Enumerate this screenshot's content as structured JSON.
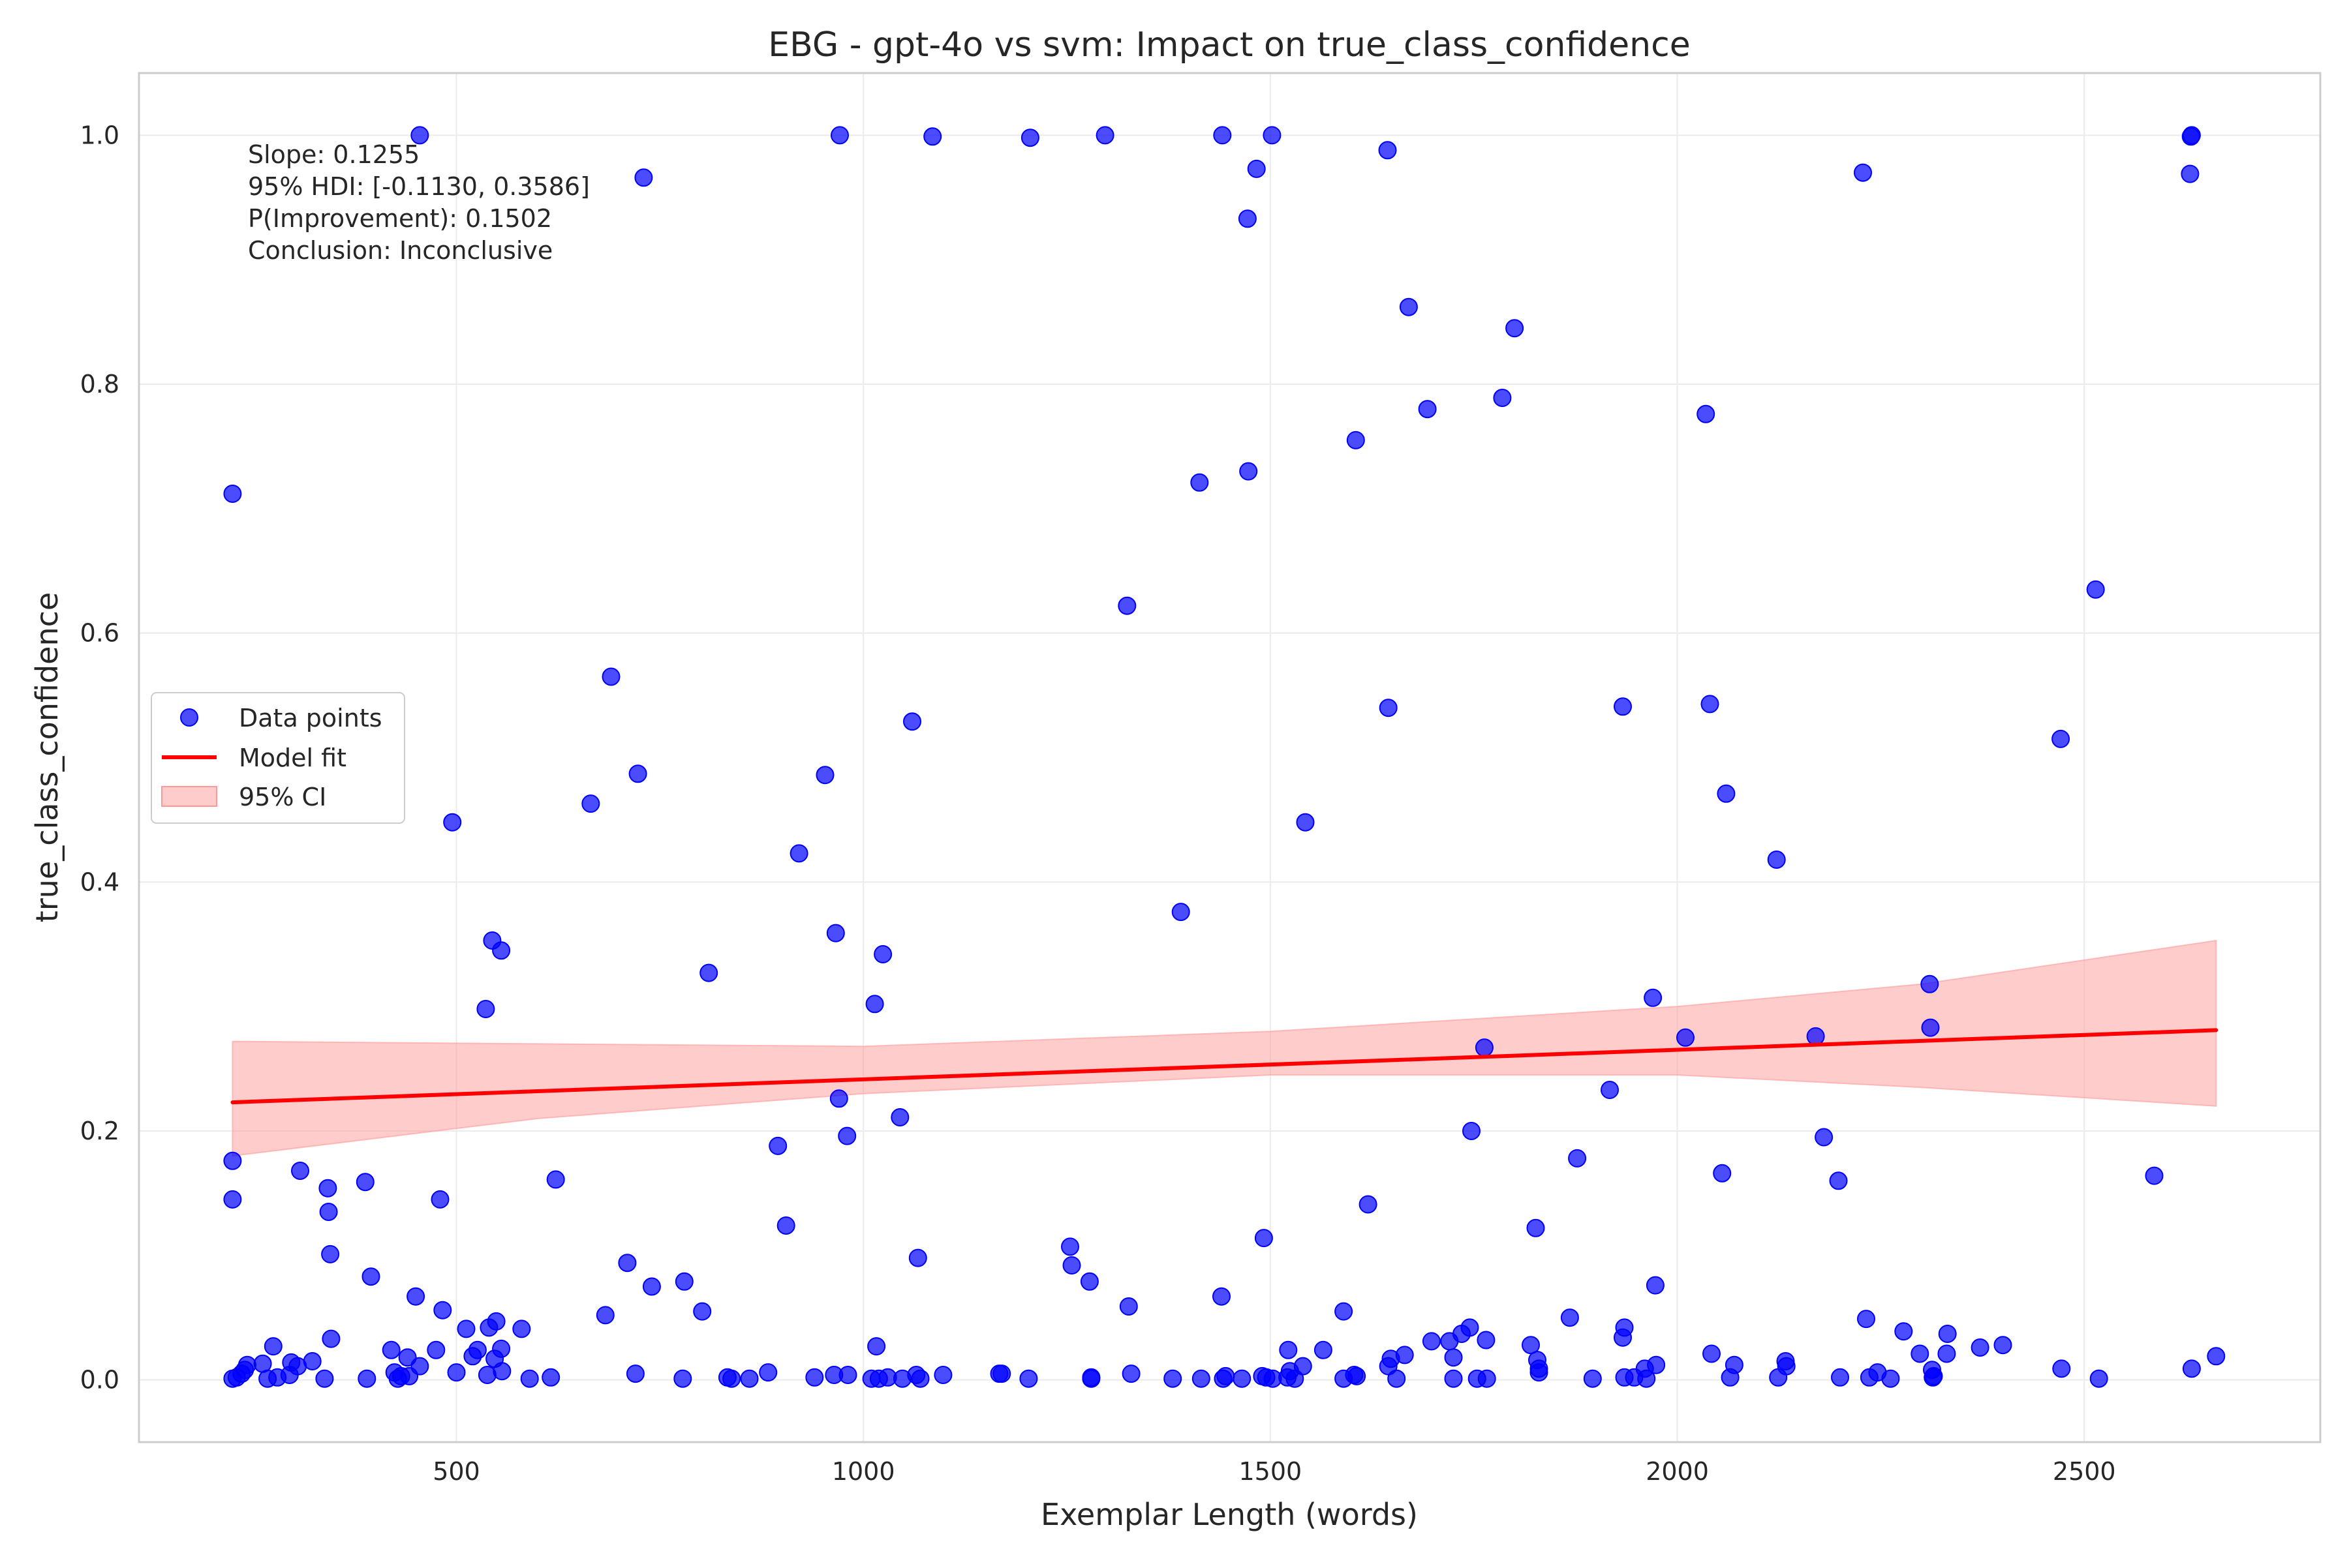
{
  "chart_data": {
    "type": "scatter",
    "title": "EBG - gpt-4o vs svm: Impact on true_class_confidence",
    "xlabel": "Exemplar Length (words)",
    "ylabel": "true_class_confidence",
    "xlim": [
      110,
      2790
    ],
    "ylim": [
      -0.05,
      1.05
    ],
    "x_ticks": [
      500,
      1000,
      1500,
      2000,
      2500
    ],
    "y_ticks": [
      0.0,
      0.2,
      0.4,
      0.6,
      0.8,
      1.0
    ],
    "x_tick_labels": [
      "500",
      "1000",
      "1500",
      "2000",
      "2500"
    ],
    "y_tick_labels": [
      "0.0",
      "0.2",
      "0.4",
      "0.6",
      "0.8",
      "1.0"
    ],
    "grid": true,
    "legend_position": "center-left",
    "legend": {
      "points_label": "Data points",
      "fit_label": "Model fit",
      "ci_label": "95% CI"
    },
    "annotation": {
      "line1": "Slope: 0.1255",
      "line2": "95% HDI: [-0.1130, 0.3586]",
      "line3": "P(Improvement): 0.1502",
      "line4": "Conclusion: Inconclusive"
    },
    "colors": {
      "points": "#0000ff",
      "fit": "#ff0000",
      "ci": "#ff9999"
    },
    "fit_line": {
      "x": [
        225,
        2662
      ],
      "y": [
        0.223,
        0.281
      ]
    },
    "ci_band": {
      "x": [
        225,
        600,
        1000,
        1500,
        2000,
        2300,
        2662
      ],
      "lower": [
        0.18,
        0.21,
        0.23,
        0.245,
        0.245,
        0.235,
        0.22
      ],
      "upper": [
        0.272,
        0.27,
        0.268,
        0.28,
        0.3,
        0.318,
        0.353
      ]
    },
    "points": [
      [
        225,
        0.712
      ],
      [
        225,
        0.176
      ],
      [
        225,
        0.145
      ],
      [
        225,
        0.001
      ],
      [
        230,
        0.002
      ],
      [
        236,
        0.005
      ],
      [
        240,
        0.008
      ],
      [
        243,
        0.012
      ],
      [
        262,
        0.013
      ],
      [
        268,
        0.001
      ],
      [
        275,
        0.027
      ],
      [
        280,
        0.002
      ],
      [
        295,
        0.004
      ],
      [
        297,
        0.014
      ],
      [
        305,
        0.011
      ],
      [
        308,
        0.168
      ],
      [
        323,
        0.015
      ],
      [
        338,
        0.001
      ],
      [
        342,
        0.154
      ],
      [
        343,
        0.135
      ],
      [
        345,
        0.101
      ],
      [
        346,
        0.033
      ],
      [
        388,
        0.159
      ],
      [
        390,
        0.001
      ],
      [
        395,
        0.083
      ],
      [
        420,
        0.024
      ],
      [
        424,
        0.006
      ],
      [
        428,
        0.001
      ],
      [
        432,
        0.003
      ],
      [
        440,
        0.018
      ],
      [
        442,
        0.003
      ],
      [
        450,
        0.067
      ],
      [
        455,
        0.011
      ],
      [
        455,
        1.0
      ],
      [
        475,
        0.024
      ],
      [
        480,
        0.145
      ],
      [
        483,
        0.056
      ],
      [
        495,
        0.448
      ],
      [
        500,
        0.006
      ],
      [
        512,
        0.041
      ],
      [
        520,
        0.019
      ],
      [
        526,
        0.024
      ],
      [
        536,
        0.298
      ],
      [
        538,
        0.004
      ],
      [
        540,
        0.042
      ],
      [
        544,
        0.353
      ],
      [
        547,
        0.017
      ],
      [
        549,
        0.047
      ],
      [
        555,
        0.345
      ],
      [
        555,
        0.025
      ],
      [
        556,
        0.007
      ],
      [
        580,
        0.041
      ],
      [
        590,
        0.001
      ],
      [
        616,
        0.002
      ],
      [
        622,
        0.161
      ],
      [
        665,
        0.463
      ],
      [
        683,
        0.052
      ],
      [
        690,
        0.565
      ],
      [
        710,
        0.094
      ],
      [
        720,
        0.005
      ],
      [
        723,
        0.487
      ],
      [
        730,
        0.966
      ],
      [
        740,
        0.075
      ],
      [
        778,
        0.001
      ],
      [
        780,
        0.079
      ],
      [
        802,
        0.055
      ],
      [
        810,
        0.327
      ],
      [
        833,
        0.002
      ],
      [
        838,
        0.001
      ],
      [
        860,
        0.001
      ],
      [
        883,
        0.006
      ],
      [
        895,
        0.188
      ],
      [
        905,
        0.124
      ],
      [
        921,
        0.423
      ],
      [
        940,
        0.002
      ],
      [
        953,
        0.486
      ],
      [
        964,
        0.004
      ],
      [
        966,
        0.359
      ],
      [
        970,
        0.226
      ],
      [
        971,
        1.0
      ],
      [
        980,
        0.196
      ],
      [
        981,
        0.004
      ],
      [
        1010,
        0.001
      ],
      [
        1014,
        0.302
      ],
      [
        1016,
        0.027
      ],
      [
        1019,
        0.001
      ],
      [
        1024,
        0.342
      ],
      [
        1030,
        0.002
      ],
      [
        1045,
        0.211
      ],
      [
        1048,
        0.001
      ],
      [
        1060,
        0.529
      ],
      [
        1065,
        0.004
      ],
      [
        1067,
        0.098
      ],
      [
        1070,
        0.001
      ],
      [
        1085,
        0.999
      ],
      [
        1098,
        0.004
      ],
      [
        1167,
        0.005
      ],
      [
        1170,
        0.005
      ],
      [
        1203,
        0.001
      ],
      [
        1205,
        0.998
      ],
      [
        1254,
        0.107
      ],
      [
        1256,
        0.092
      ],
      [
        1278,
        0.079
      ],
      [
        1280,
        0.002
      ],
      [
        1280,
        0.001
      ],
      [
        1297,
        1.0
      ],
      [
        1324,
        0.622
      ],
      [
        1326,
        0.059
      ],
      [
        1329,
        0.005
      ],
      [
        1380,
        0.001
      ],
      [
        1390,
        0.376
      ],
      [
        1413,
        0.721
      ],
      [
        1415,
        0.001
      ],
      [
        1440,
        0.067
      ],
      [
        1441,
        1.0
      ],
      [
        1442,
        0.001
      ],
      [
        1445,
        0.003
      ],
      [
        1465,
        0.001
      ],
      [
        1472,
        0.933
      ],
      [
        1473,
        0.73
      ],
      [
        1483,
        0.973
      ],
      [
        1490,
        0.003
      ],
      [
        1492,
        0.114
      ],
      [
        1495,
        0.002
      ],
      [
        1502,
        1.0
      ],
      [
        1503,
        0.001
      ],
      [
        1521,
        0.002
      ],
      [
        1522,
        0.024
      ],
      [
        1524,
        0.007
      ],
      [
        1530,
        0.001
      ],
      [
        1540,
        0.011
      ],
      [
        1543,
        0.448
      ],
      [
        1565,
        0.024
      ],
      [
        1590,
        0.055
      ],
      [
        1590,
        0.001
      ],
      [
        1603,
        0.004
      ],
      [
        1605,
        0.755
      ],
      [
        1606,
        0.003
      ],
      [
        1620,
        0.141
      ],
      [
        1644,
        0.988
      ],
      [
        1645,
        0.54
      ],
      [
        1645,
        0.011
      ],
      [
        1648,
        0.017
      ],
      [
        1655,
        0.001
      ],
      [
        1665,
        0.02
      ],
      [
        1670,
        0.862
      ],
      [
        1693,
        0.78
      ],
      [
        1698,
        0.031
      ],
      [
        1720,
        0.031
      ],
      [
        1725,
        0.018
      ],
      [
        1725,
        0.001
      ],
      [
        1735,
        0.037
      ],
      [
        1745,
        0.042
      ],
      [
        1747,
        0.2
      ],
      [
        1754,
        0.001
      ],
      [
        1763,
        0.267
      ],
      [
        1765,
        0.032
      ],
      [
        1766,
        0.001
      ],
      [
        1785,
        0.789
      ],
      [
        1800,
        0.845
      ],
      [
        1820,
        0.028
      ],
      [
        1826,
        0.122
      ],
      [
        1828,
        0.016
      ],
      [
        1830,
        0.006
      ],
      [
        1830,
        0.009
      ],
      [
        1868,
        0.05
      ],
      [
        1877,
        0.178
      ],
      [
        1896,
        0.001
      ],
      [
        1917,
        0.233
      ],
      [
        1933,
        0.541
      ],
      [
        1933,
        0.034
      ],
      [
        1935,
        0.042
      ],
      [
        1935,
        0.002
      ],
      [
        1947,
        0.002
      ],
      [
        1960,
        0.009
      ],
      [
        1962,
        0.001
      ],
      [
        1970,
        0.307
      ],
      [
        1973,
        0.076
      ],
      [
        1974,
        0.012
      ],
      [
        2010,
        0.275
      ],
      [
        2035,
        0.776
      ],
      [
        2040,
        0.543
      ],
      [
        2042,
        0.021
      ],
      [
        2055,
        0.166
      ],
      [
        2060,
        0.471
      ],
      [
        2065,
        0.002
      ],
      [
        2070,
        0.012
      ],
      [
        2122,
        0.418
      ],
      [
        2124,
        0.002
      ],
      [
        2133,
        0.015
      ],
      [
        2134,
        0.011
      ],
      [
        2170,
        0.276
      ],
      [
        2180,
        0.195
      ],
      [
        2198,
        0.16
      ],
      [
        2200,
        0.002
      ],
      [
        2228,
        0.97
      ],
      [
        2232,
        0.049
      ],
      [
        2236,
        0.002
      ],
      [
        2246,
        0.006
      ],
      [
        2262,
        0.001
      ],
      [
        2278,
        0.039
      ],
      [
        2298,
        0.021
      ],
      [
        2310,
        0.318
      ],
      [
        2311,
        0.283
      ],
      [
        2313,
        0.008
      ],
      [
        2314,
        0.002
      ],
      [
        2315,
        0.003
      ],
      [
        2331,
        0.021
      ],
      [
        2332,
        0.037
      ],
      [
        2372,
        0.026
      ],
      [
        2400,
        0.028
      ],
      [
        2471,
        0.515
      ],
      [
        2472,
        0.009
      ],
      [
        2514,
        0.635
      ],
      [
        2518,
        0.001
      ],
      [
        2586,
        0.164
      ],
      [
        2630,
        0.969
      ],
      [
        2631,
        0.999
      ],
      [
        2632,
        1.0
      ],
      [
        2632,
        0.009
      ],
      [
        2662,
        0.019
      ]
    ]
  }
}
